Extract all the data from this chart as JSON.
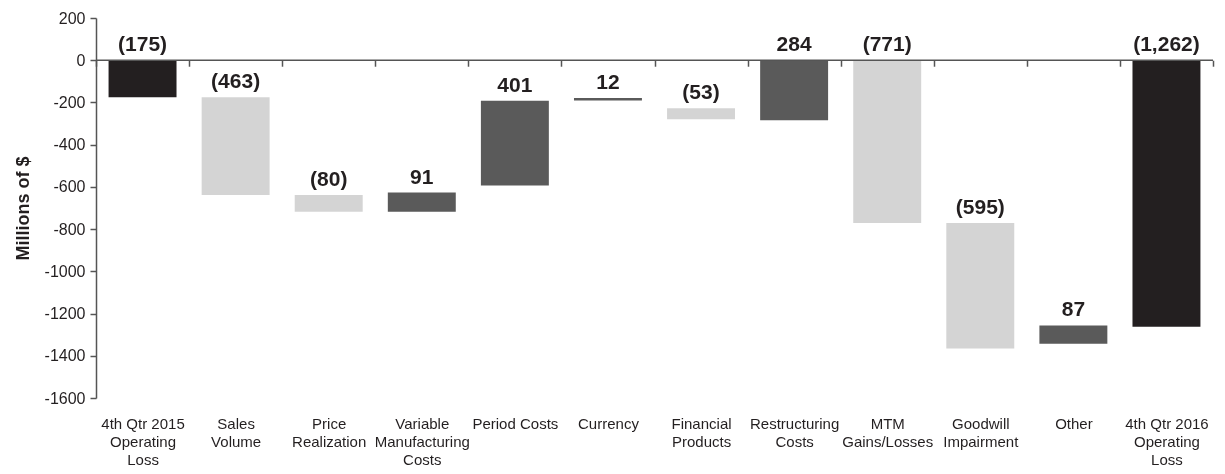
{
  "chart_data": {
    "type": "bar",
    "ylabel": "Millions of $",
    "categories": [
      "4th Qtr 2015 Operating Loss",
      "Sales Volume",
      "Price Realization",
      "Variable Manufacturing Costs",
      "Period Costs",
      "Currency",
      "Financial Products",
      "Restructuring Costs",
      "MTM Gains/Losses",
      "Goodwill Impairment",
      "Other",
      "4th Qtr 2016 Operating Loss"
    ],
    "values": [
      -175,
      -463,
      -80,
      91,
      401,
      12,
      -53,
      284,
      -771,
      -595,
      87,
      -1262
    ],
    "base": [
      0,
      -175,
      -638,
      -718,
      -593,
      -191,
      -227,
      -284,
      0,
      -771,
      -1343,
      0
    ],
    "colors": [
      "#231f20",
      "#d4d4d4",
      "#d4d4d4",
      "#5a5a5a",
      "#5a5a5a",
      "#5a5a5a",
      "#d4d4d4",
      "#5a5a5a",
      "#d4d4d4",
      "#d4d4d4",
      "#5a5a5a",
      "#231f20"
    ],
    "value_labels": [
      "(175)",
      "(463)",
      "(80)",
      "91",
      "401",
      "12",
      "(53)",
      "284",
      "(771)",
      "(595)",
      "87",
      "(1,262)"
    ],
    "ylim": [
      -1600,
      200
    ],
    "yticks": [
      -1600,
      -1400,
      -1200,
      -1000,
      -800,
      -600,
      -400,
      -200,
      0,
      200
    ],
    "ref_lines": [
      {
        "axis": "y",
        "value": 0,
        "color": "#555555",
        "line_style": "solid"
      }
    ],
    "grid": false
  }
}
